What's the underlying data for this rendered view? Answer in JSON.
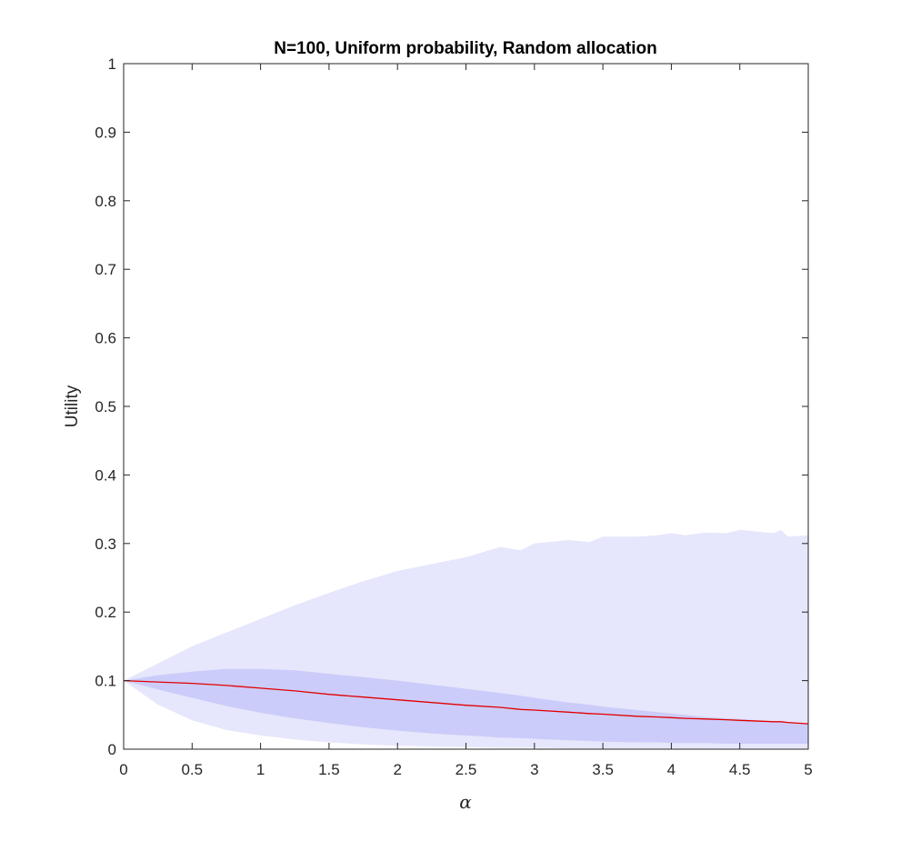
{
  "chart_data": {
    "type": "area",
    "title": "N=100, Uniform probability, Random allocation",
    "xlabel": "α",
    "ylabel": "Utility",
    "xlim": [
      0,
      5
    ],
    "ylim": [
      0,
      1
    ],
    "xticks": [
      0,
      0.5,
      1,
      1.5,
      2,
      2.5,
      3,
      3.5,
      4,
      4.5,
      5
    ],
    "xtick_labels": [
      "0",
      "0.5",
      "1",
      "1.5",
      "2",
      "2.5",
      "3",
      "3.5",
      "4",
      "4.5",
      "5"
    ],
    "yticks": [
      0,
      0.1,
      0.2,
      0.3,
      0.4,
      0.5,
      0.6,
      0.7,
      0.8,
      0.9,
      1
    ],
    "ytick_labels": [
      "0",
      "0.1",
      "0.2",
      "0.3",
      "0.4",
      "0.5",
      "0.6",
      "0.7",
      "0.8",
      "0.9",
      "1"
    ],
    "grid": false,
    "colors": {
      "outer_band": "#e6e6fc",
      "inner_band": "#ccccfa",
      "mean_line": "#e00000",
      "axes": "#262626"
    },
    "x": [
      0,
      0.25,
      0.5,
      0.75,
      1,
      1.25,
      1.5,
      1.75,
      2,
      2.25,
      2.5,
      2.75,
      2.9,
      3,
      3.25,
      3.4,
      3.5,
      3.75,
      3.9,
      4,
      4.1,
      4.25,
      4.4,
      4.5,
      4.75,
      4.8,
      4.85,
      5
    ],
    "series": [
      {
        "role": "outer_band",
        "upper": [
          0.1,
          0.125,
          0.15,
          0.17,
          0.19,
          0.21,
          0.228,
          0.245,
          0.26,
          0.27,
          0.28,
          0.295,
          0.29,
          0.3,
          0.305,
          0.302,
          0.31,
          0.31,
          0.312,
          0.315,
          0.312,
          0.316,
          0.315,
          0.32,
          0.315,
          0.32,
          0.31,
          0.312
        ],
        "lower": [
          0.1,
          0.065,
          0.042,
          0.028,
          0.02,
          0.014,
          0.01,
          0.007,
          0.005,
          0.004,
          0.003,
          0.002,
          0.002,
          0.002,
          0.001,
          0.001,
          0.001,
          0.001,
          0.001,
          0.001,
          0.001,
          0.001,
          0.001,
          0.001,
          0.001,
          0.001,
          0.001,
          0.001
        ]
      },
      {
        "role": "inner_band",
        "upper": [
          0.1,
          0.108,
          0.113,
          0.117,
          0.117,
          0.115,
          0.11,
          0.105,
          0.1,
          0.094,
          0.088,
          0.082,
          0.078,
          0.075,
          0.068,
          0.065,
          0.062,
          0.057,
          0.054,
          0.052,
          0.05,
          0.047,
          0.045,
          0.044,
          0.04,
          0.04,
          0.039,
          0.037
        ],
        "lower": [
          0.1,
          0.087,
          0.075,
          0.063,
          0.053,
          0.045,
          0.038,
          0.032,
          0.027,
          0.023,
          0.02,
          0.017,
          0.016,
          0.015,
          0.013,
          0.012,
          0.011,
          0.01,
          0.01,
          0.009,
          0.009,
          0.009,
          0.008,
          0.008,
          0.008,
          0.008,
          0.008,
          0.008
        ]
      },
      {
        "role": "mean_line",
        "values": [
          0.1,
          0.098,
          0.096,
          0.093,
          0.089,
          0.085,
          0.08,
          0.076,
          0.072,
          0.068,
          0.064,
          0.061,
          0.058,
          0.057,
          0.054,
          0.052,
          0.051,
          0.048,
          0.047,
          0.046,
          0.045,
          0.044,
          0.043,
          0.042,
          0.04,
          0.04,
          0.039,
          0.037
        ]
      }
    ]
  }
}
